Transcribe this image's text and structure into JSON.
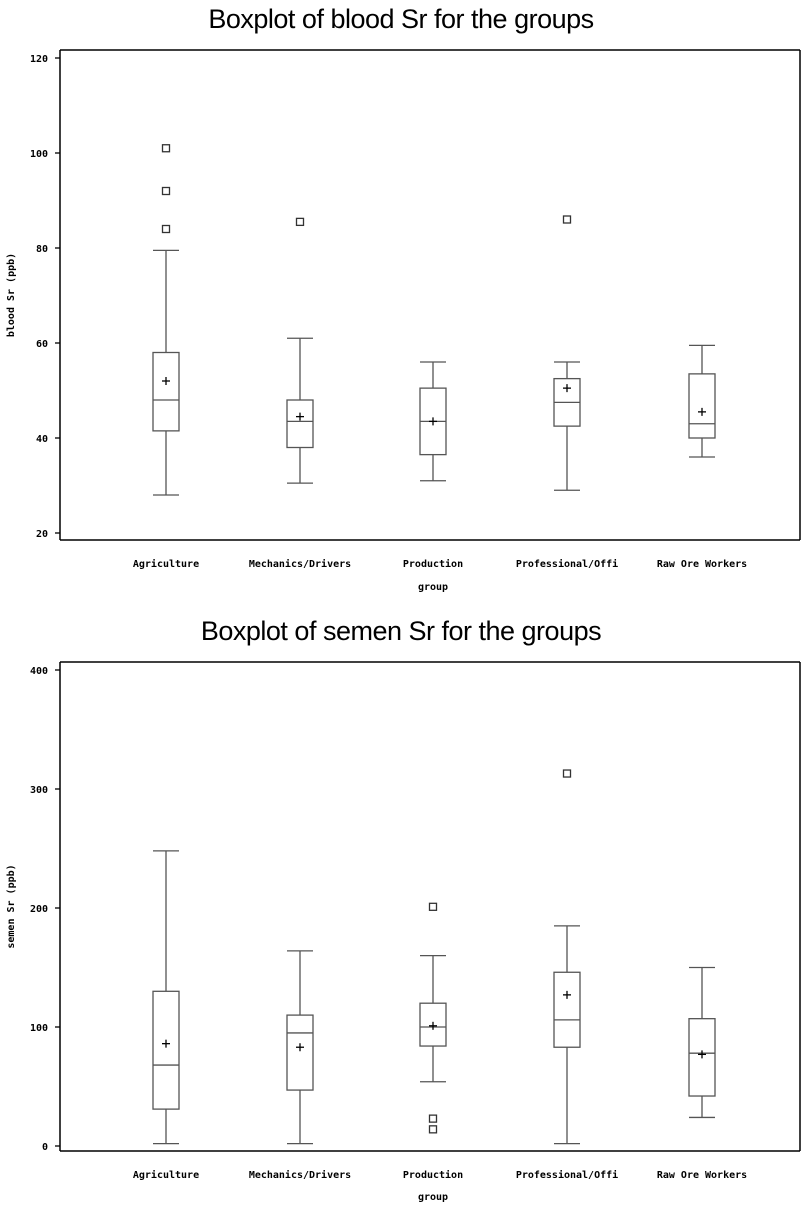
{
  "chart_data": [
    {
      "type": "boxplot",
      "title": "Boxplot of blood Sr for the groups",
      "xlabel": "group",
      "ylabel": "blood Sr (ppb)",
      "ylim": [
        20,
        120
      ],
      "yticks": [
        20,
        40,
        60,
        80,
        100,
        120
      ],
      "categories": [
        "Agriculture",
        "Mechanics/Drivers",
        "Production",
        "Professional/Offi",
        "Raw Ore Workers"
      ],
      "boxes": [
        {
          "min": 28,
          "q1": 41.5,
          "median": 48,
          "q3": 58,
          "max": 79.5,
          "mean": 52,
          "outliers": [
            84,
            92,
            101
          ]
        },
        {
          "min": 30.5,
          "q1": 38,
          "median": 43.5,
          "q3": 48,
          "max": 61,
          "mean": 44.5,
          "outliers": [
            85.5
          ]
        },
        {
          "min": 31,
          "q1": 36.5,
          "median": 43.5,
          "q3": 50.5,
          "max": 56,
          "mean": 43.5,
          "outliers": []
        },
        {
          "min": 29,
          "q1": 42.5,
          "median": 47.5,
          "q3": 52.5,
          "max": 56,
          "mean": 50.5,
          "outliers": [
            86
          ]
        },
        {
          "min": 36,
          "q1": 40,
          "median": 43,
          "q3": 53.5,
          "max": 59.5,
          "mean": 45.5,
          "outliers": []
        }
      ]
    },
    {
      "type": "boxplot",
      "title": "Boxplot of semen Sr for the groups",
      "xlabel": "group",
      "ylabel": "semen Sr (ppb)",
      "ylim": [
        0,
        400
      ],
      "yticks": [
        0,
        100,
        200,
        300,
        400
      ],
      "categories": [
        "Agriculture",
        "Mechanics/Drivers",
        "Production",
        "Professional/Offi",
        "Raw Ore Workers"
      ],
      "boxes": [
        {
          "min": 2,
          "q1": 31,
          "median": 68,
          "q3": 130,
          "max": 248,
          "mean": 86,
          "outliers": []
        },
        {
          "min": 2,
          "q1": 47,
          "median": 95,
          "q3": 110,
          "max": 164,
          "mean": 83,
          "outliers": []
        },
        {
          "min": 54,
          "q1": 84,
          "median": 100,
          "q3": 120,
          "max": 160,
          "mean": 101,
          "outliers": [
            14,
            23,
            201
          ]
        },
        {
          "min": 2,
          "q1": 83,
          "median": 106,
          "q3": 146,
          "max": 185,
          "mean": 127,
          "outliers": [
            313
          ]
        },
        {
          "min": 24,
          "q1": 42,
          "median": 78,
          "q3": 107,
          "max": 150,
          "mean": 77,
          "outliers": []
        }
      ]
    }
  ]
}
